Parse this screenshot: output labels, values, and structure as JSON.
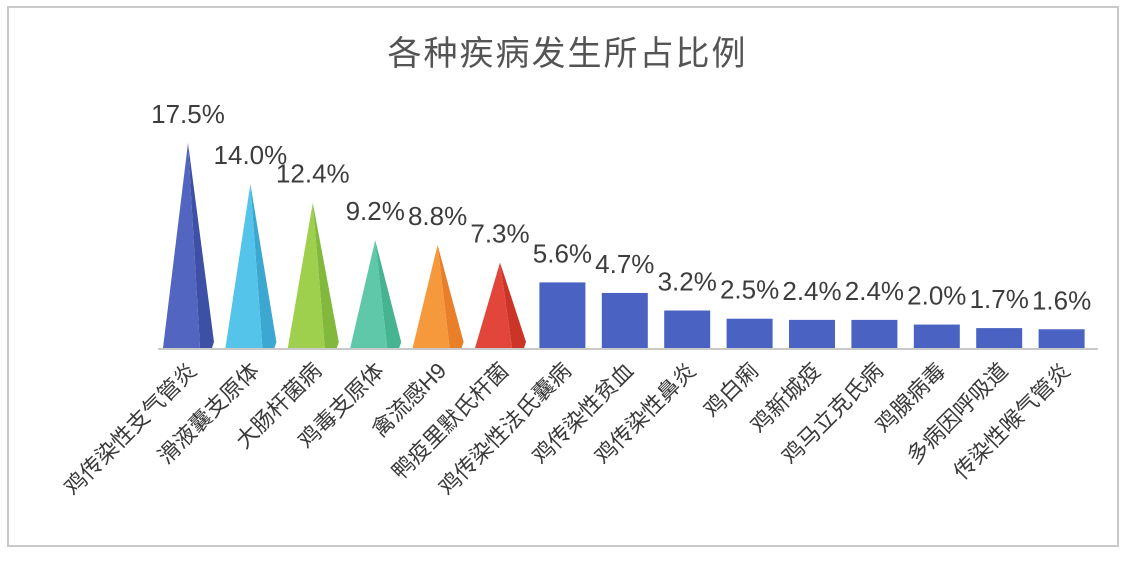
{
  "window": {
    "background_color": "#ffffff",
    "frame_border_color": "#c9c9c9"
  },
  "chart_data": {
    "type": "bar",
    "title": "各种疾病发生所占比例",
    "title_color": "#545454",
    "unit": "%",
    "categories": [
      "鸡传染性支气管炎",
      "滑液囊支原体",
      "大肠杆菌病",
      "鸡毒支原体",
      "禽流感H9",
      "鸭疫里默氏杆菌",
      "鸡传染性法氏囊病",
      "鸡传染性贫血",
      "鸡传染性鼻炎",
      "鸡白痢",
      "鸡新城疫",
      "鸡马立克氏病",
      "鸡腺病毒",
      "多病因呼吸道",
      "传染性喉气管炎"
    ],
    "values": [
      17.5,
      14.0,
      12.4,
      9.2,
      8.8,
      7.3,
      5.6,
      4.7,
      3.2,
      2.5,
      2.4,
      2.4,
      2.0,
      1.7,
      1.6
    ],
    "value_labels": [
      "17.5%",
      "14.0%",
      "12.4%",
      "9.2%",
      "8.8%",
      "7.3%",
      "5.6%",
      "4.7%",
      "3.2%",
      "2.5%",
      "2.4%",
      "2.4%",
      "2.0%",
      "1.7%",
      "1.6%"
    ],
    "marker_shapes": [
      "pyramid",
      "pyramid",
      "pyramid",
      "pyramid",
      "pyramid",
      "pyramid",
      "bar",
      "bar",
      "bar",
      "bar",
      "bar",
      "bar",
      "bar",
      "bar",
      "bar"
    ],
    "pyramid_colors": [
      {
        "main": "#5265c0",
        "side": "#3e50a6"
      },
      {
        "main": "#54c4ea",
        "side": "#3ca8d2"
      },
      {
        "main": "#9ed04e",
        "side": "#82b93c"
      },
      {
        "main": "#5ec8a8",
        "side": "#46b391"
      },
      {
        "main": "#f6993c",
        "side": "#e97f28"
      },
      {
        "main": "#e2463a",
        "side": "#cb3426"
      }
    ],
    "bar_color": "#4a63c2",
    "axis_color": "#c9c9c9",
    "value_label_color": "#3d3d3d",
    "category_label_color": "#3a3a3a",
    "category_label_rotation_deg": 45,
    "ylim": [
      0,
      20
    ],
    "grid": false,
    "legend": "none",
    "xlabel": "",
    "ylabel": ""
  }
}
